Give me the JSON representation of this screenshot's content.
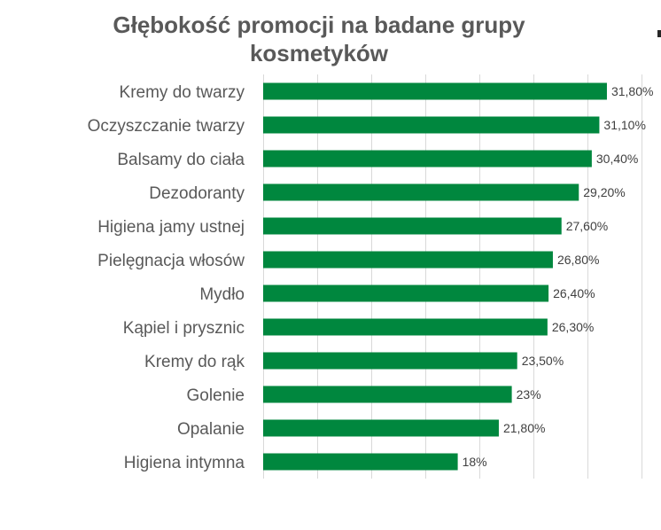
{
  "chart_data": {
    "type": "bar",
    "orientation": "horizontal",
    "title_lines": [
      "Głębokość promocji na badane grupy",
      "kosmetyków"
    ],
    "categories": [
      "Kremy do twarzy",
      "Oczyszczanie twarzy",
      "Balsamy do ciała",
      "Dezodoranty",
      "Higiena jamy ustnej",
      "Pielęgnacja włosów",
      "Mydło",
      "Kąpiel i prysznic",
      "Kremy do rąk",
      "Golenie",
      "Opalanie",
      "Higiena intymna"
    ],
    "values": [
      31.8,
      31.1,
      30.4,
      29.2,
      27.6,
      26.8,
      26.4,
      26.3,
      23.5,
      23.0,
      21.8,
      18.0
    ],
    "value_labels": [
      "31,80%",
      "31,10%",
      "30,40%",
      "29,20%",
      "27,60%",
      "26,80%",
      "26,40%",
      "26,30%",
      "23,50%",
      "23%",
      "21,80%",
      "18%"
    ],
    "xlim": [
      0,
      35
    ],
    "x_gridlines": [
      0,
      5,
      10,
      15,
      20,
      25,
      30,
      35
    ],
    "grid": true,
    "bar_color": "#00873e",
    "grid_color": "#d9d9d9",
    "text_color": "#595959"
  }
}
